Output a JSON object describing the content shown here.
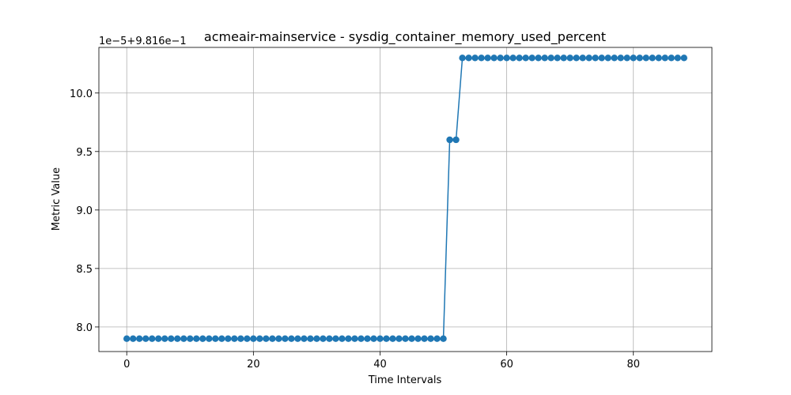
{
  "chart_data": {
    "type": "line",
    "title": "acmeair-mainservice - sysdig_container_memory_used_percent",
    "xlabel": "Time Intervals",
    "ylabel": "Metric Value",
    "offset_label": "1e−5+9.816e−1",
    "xlim": [
      -4.4,
      92.4
    ],
    "ylim": [
      7.79,
      10.39
    ],
    "xticks": [
      0,
      20,
      40,
      60,
      80
    ],
    "yticks": [
      8.0,
      8.5,
      9.0,
      9.5,
      10.0
    ],
    "ytick_labels": [
      "8.0",
      "8.5",
      "9.0",
      "9.5",
      "10.0"
    ],
    "grid": true,
    "legend": "none",
    "series": [
      {
        "color": "#1f77b4",
        "marker": "circle",
        "x": [
          0,
          1,
          2,
          3,
          4,
          5,
          6,
          7,
          8,
          9,
          10,
          11,
          12,
          13,
          14,
          15,
          16,
          17,
          18,
          19,
          20,
          21,
          22,
          23,
          24,
          25,
          26,
          27,
          28,
          29,
          30,
          31,
          32,
          33,
          34,
          35,
          36,
          37,
          38,
          39,
          40,
          41,
          42,
          43,
          44,
          45,
          46,
          47,
          48,
          49,
          50,
          51,
          52,
          53,
          54,
          55,
          56,
          57,
          58,
          59,
          60,
          61,
          62,
          63,
          64,
          65,
          66,
          67,
          68,
          69,
          70,
          71,
          72,
          73,
          74,
          75,
          76,
          77,
          78,
          79,
          80,
          81,
          82,
          83,
          84,
          85,
          86,
          87,
          88
        ],
        "y": [
          7.9,
          7.9,
          7.9,
          7.9,
          7.9,
          7.9,
          7.9,
          7.9,
          7.9,
          7.9,
          7.9,
          7.9,
          7.9,
          7.9,
          7.9,
          7.9,
          7.9,
          7.9,
          7.9,
          7.9,
          7.9,
          7.9,
          7.9,
          7.9,
          7.9,
          7.9,
          7.9,
          7.9,
          7.9,
          7.9,
          7.9,
          7.9,
          7.9,
          7.9,
          7.9,
          7.9,
          7.9,
          7.9,
          7.9,
          7.9,
          7.9,
          7.9,
          7.9,
          7.9,
          7.9,
          7.9,
          7.9,
          7.9,
          7.9,
          7.9,
          7.9,
          9.6,
          9.6,
          10.3,
          10.3,
          10.3,
          10.3,
          10.3,
          10.3,
          10.3,
          10.3,
          10.3,
          10.3,
          10.3,
          10.3,
          10.3,
          10.3,
          10.3,
          10.3,
          10.3,
          10.3,
          10.3,
          10.3,
          10.3,
          10.3,
          10.3,
          10.3,
          10.3,
          10.3,
          10.3,
          10.3,
          10.3,
          10.3,
          10.3,
          10.3,
          10.3,
          10.3,
          10.3,
          10.3
        ]
      }
    ]
  }
}
